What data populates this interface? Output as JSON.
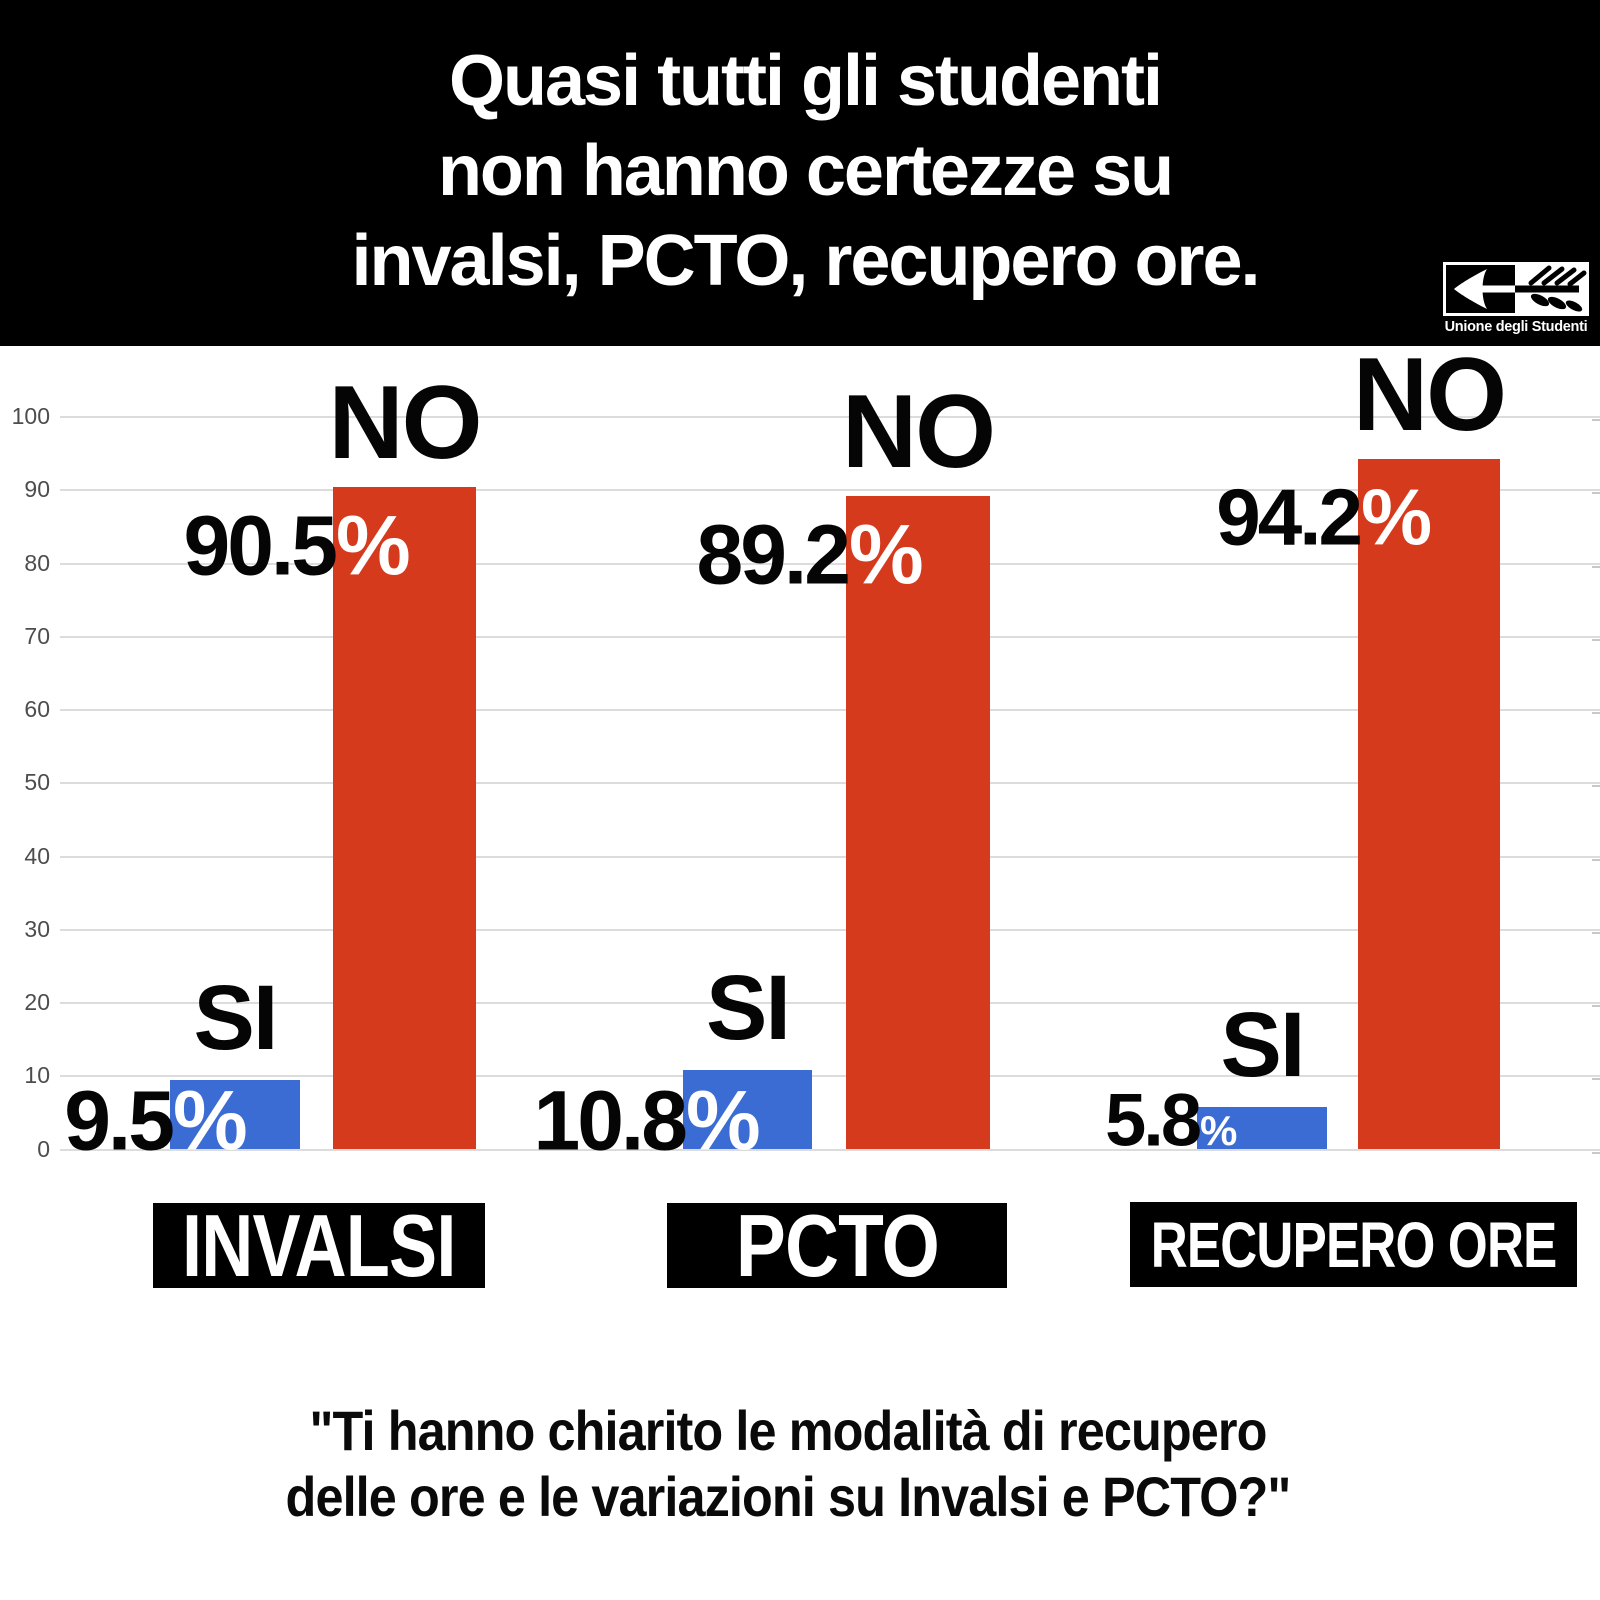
{
  "header": {
    "title_lines": [
      "Quasi tutti gli studenti",
      "non hanno certezze su",
      "invalsi, PCTO, recupero ore."
    ],
    "logo_text": "Unione degli Studenti"
  },
  "chart_data": {
    "type": "bar",
    "title": "Quasi tutti gli studenti non hanno certezze su invalsi, PCTO, recupero ore.",
    "categories": [
      "INVALSI",
      "PCTO",
      "RECUPERO ORE"
    ],
    "series": [
      {
        "name": "SI",
        "color": "#3b6cd3",
        "values": [
          9.5,
          10.8,
          5.8
        ]
      },
      {
        "name": "NO",
        "color": "#d63a1d",
        "values": [
          90.5,
          89.2,
          94.2
        ]
      }
    ],
    "value_suffix": "%",
    "ylabel": "",
    "xlabel": "",
    "ylim": [
      0,
      100
    ],
    "yticks": [
      0,
      10,
      20,
      30,
      40,
      50,
      60,
      70,
      80,
      90,
      100
    ],
    "grid": true,
    "legend_position": "none"
  },
  "footer": {
    "question_lines": [
      "\"Ti hanno chiarito le modalità di recupero",
      "delle ore e le variazioni su Invalsi e PCTO?\""
    ]
  }
}
